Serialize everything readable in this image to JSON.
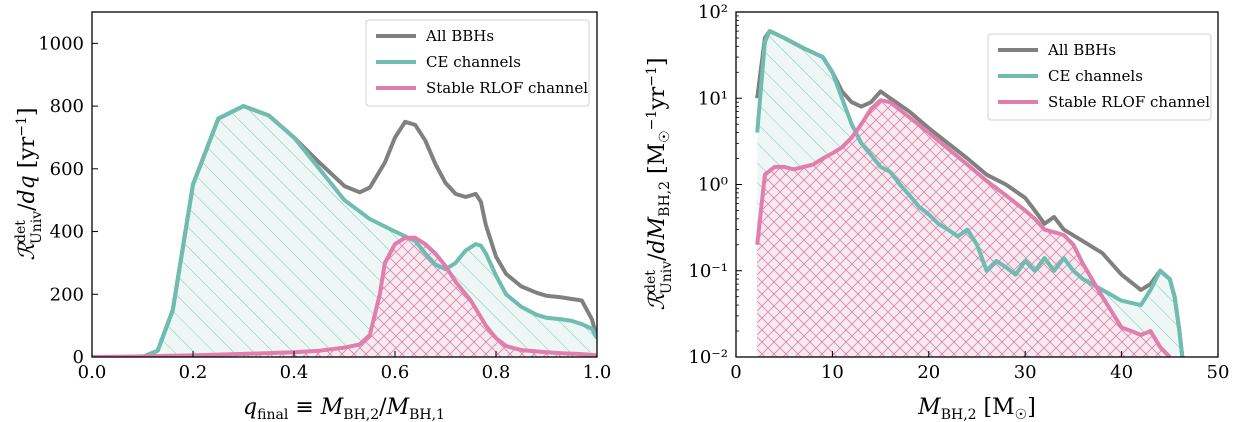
{
  "colors": {
    "all": "#808080",
    "ce": "#6fbdb0",
    "rlof": "#e07fab",
    "ce_fill": "#eef7f5",
    "rlof_fill": "#f5eaf0",
    "hatch_ce": "#6fbdb0",
    "hatch_rlof": "#e07fab"
  },
  "chart_data": [
    {
      "type": "area",
      "xlabel": "q_final ≡ M_BH,2/M_BH,1",
      "ylabel": "R^det_Univ / dq [yr^-1]",
      "xlim": [
        0.0,
        1.0
      ],
      "ylim": [
        0,
        1100
      ],
      "xticks": [
        0.0,
        0.2,
        0.4,
        0.6,
        0.8,
        1.0
      ],
      "xtick_labels": [
        "0.0",
        "0.2",
        "0.4",
        "0.6",
        "0.8",
        "1.0"
      ],
      "yticks": [
        0,
        200,
        400,
        600,
        800,
        1000
      ],
      "ytick_labels": [
        "0",
        "200",
        "400",
        "600",
        "800",
        "1000"
      ],
      "legend": "top-right",
      "legend_entries": [
        "All BBHs",
        "CE channels",
        "Stable RLOF channel"
      ],
      "series": [
        {
          "name": "All BBHs",
          "x": [
            0,
            0.1,
            0.13,
            0.16,
            0.2,
            0.25,
            0.3,
            0.35,
            0.4,
            0.45,
            0.5,
            0.53,
            0.55,
            0.58,
            0.6,
            0.62,
            0.64,
            0.66,
            0.68,
            0.7,
            0.72,
            0.74,
            0.76,
            0.77,
            0.78,
            0.8,
            0.82,
            0.85,
            0.88,
            0.9,
            0.93,
            0.95,
            0.97,
            0.99,
            1.0
          ],
          "y": [
            0,
            0,
            20,
            150,
            550,
            760,
            800,
            770,
            700,
            620,
            545,
            525,
            540,
            620,
            700,
            750,
            740,
            690,
            615,
            555,
            520,
            510,
            520,
            495,
            420,
            320,
            265,
            225,
            205,
            195,
            190,
            185,
            180,
            120,
            60
          ]
        },
        {
          "name": "CE channels",
          "x": [
            0,
            0.1,
            0.13,
            0.16,
            0.2,
            0.25,
            0.3,
            0.35,
            0.4,
            0.45,
            0.5,
            0.55,
            0.6,
            0.64,
            0.66,
            0.68,
            0.7,
            0.72,
            0.74,
            0.76,
            0.77,
            0.78,
            0.8,
            0.82,
            0.85,
            0.88,
            0.9,
            0.93,
            0.95,
            0.97,
            0.99,
            1.0
          ],
          "y": [
            0,
            0,
            20,
            150,
            550,
            760,
            800,
            770,
            700,
            600,
            500,
            440,
            400,
            370,
            330,
            295,
            280,
            300,
            340,
            360,
            355,
            330,
            260,
            200,
            160,
            135,
            125,
            120,
            115,
            105,
            90,
            60
          ]
        },
        {
          "name": "Stable RLOF channel",
          "x": [
            0,
            0.1,
            0.2,
            0.3,
            0.4,
            0.45,
            0.5,
            0.53,
            0.55,
            0.57,
            0.58,
            0.6,
            0.62,
            0.64,
            0.66,
            0.68,
            0.7,
            0.72,
            0.75,
            0.78,
            0.8,
            0.82,
            0.85,
            0.88,
            0.9,
            0.93,
            0.96,
            0.98,
            1.0
          ],
          "y": [
            0,
            2,
            5,
            10,
            15,
            20,
            30,
            40,
            70,
            200,
            300,
            360,
            380,
            380,
            360,
            330,
            290,
            240,
            180,
            100,
            60,
            35,
            22,
            18,
            15,
            12,
            10,
            8,
            5
          ]
        }
      ]
    },
    {
      "type": "area",
      "xlabel": "M_BH,2 [M☉]",
      "ylabel": "R^det_Univ / dM_BH,2 [M☉^-1 yr^-1]",
      "xlim": [
        0,
        50
      ],
      "ylim": [
        0.01,
        100
      ],
      "yscale": "log",
      "xticks": [
        0,
        10,
        20,
        30,
        40,
        50
      ],
      "xtick_labels": [
        "0",
        "10",
        "20",
        "30",
        "40",
        "50"
      ],
      "yticks": [
        0.01,
        0.1,
        1,
        10,
        100
      ],
      "ytick_labels": [
        "10⁻²",
        "10⁻¹",
        "10⁰",
        "10¹",
        "10²"
      ],
      "legend": "top-right",
      "legend_entries": [
        "All BBHs",
        "CE channels",
        "Stable RLOF channel"
      ],
      "series": [
        {
          "name": "All BBHs",
          "x": [
            2.2,
            3,
            3.5,
            5,
            7,
            9,
            10,
            11,
            12,
            13,
            14,
            15,
            16,
            18,
            20,
            22,
            24,
            26,
            28,
            30,
            31,
            32,
            33,
            34,
            36,
            38,
            40,
            42,
            43,
            44,
            45,
            45.5,
            46,
            46.3
          ],
          "y": [
            10,
            50,
            60,
            50,
            38,
            30,
            20,
            12,
            9,
            8,
            9,
            12,
            10,
            7,
            4.5,
            3,
            2,
            1.3,
            1,
            0.7,
            0.5,
            0.35,
            0.42,
            0.3,
            0.22,
            0.16,
            0.09,
            0.06,
            0.07,
            0.1,
            0.08,
            0.05,
            0.02,
            0.01
          ]
        },
        {
          "name": "CE channels",
          "x": [
            2.2,
            3,
            3.5,
            5,
            7,
            9,
            10,
            11,
            12,
            13,
            14,
            15,
            16,
            17,
            18,
            19,
            20,
            21,
            22,
            23,
            24,
            25,
            26,
            27,
            28,
            29,
            30,
            31,
            32,
            33,
            34,
            35,
            36,
            38,
            40,
            42,
            43,
            44,
            45,
            45.5,
            46,
            46.3
          ],
          "y": [
            4,
            45,
            60,
            50,
            38,
            30,
            20,
            10,
            5,
            3,
            2.2,
            1.6,
            1.4,
            1,
            0.75,
            0.55,
            0.45,
            0.35,
            0.3,
            0.25,
            0.3,
            0.2,
            0.1,
            0.13,
            0.11,
            0.09,
            0.13,
            0.1,
            0.14,
            0.1,
            0.14,
            0.1,
            0.08,
            0.06,
            0.045,
            0.04,
            0.06,
            0.1,
            0.08,
            0.05,
            0.02,
            0.01
          ]
        },
        {
          "name": "Stable RLOF channel",
          "x": [
            2.2,
            3,
            4,
            5,
            6,
            7,
            8,
            9,
            10,
            11,
            12,
            13,
            14,
            15,
            16,
            18,
            20,
            22,
            24,
            26,
            28,
            30,
            31,
            32,
            33,
            34,
            35,
            36,
            38,
            40,
            41,
            42,
            43,
            44,
            45
          ],
          "y": [
            0.2,
            1.3,
            1.6,
            1.6,
            1.5,
            1.6,
            1.7,
            2,
            2.3,
            2.7,
            3.5,
            5,
            7.5,
            9.5,
            9,
            6,
            4,
            2.6,
            1.7,
            1.1,
            0.75,
            0.5,
            0.4,
            0.3,
            0.28,
            0.26,
            0.2,
            0.12,
            0.05,
            0.022,
            0.02,
            0.018,
            0.02,
            0.013,
            0.01
          ]
        }
      ]
    }
  ]
}
